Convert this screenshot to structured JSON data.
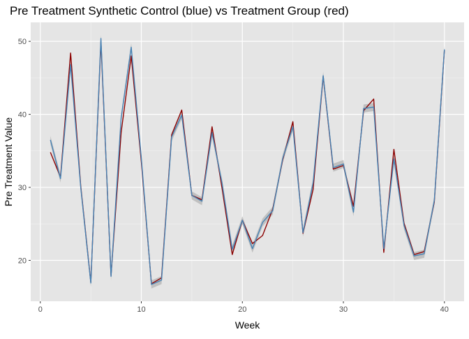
{
  "colors": {
    "panel_background": "#e5e5e5",
    "grid_major": "#ffffff",
    "treatment_line": "#8b0000",
    "synthetic_line": "#4682b4",
    "ribbon": "#b3b3b3"
  },
  "chart_data": {
    "type": "line",
    "title": "Pre Treatment Synthetic Control (blue) vs Treatment Group (red)",
    "xlabel": "Week",
    "ylabel": "Pre Treatment Value",
    "xlim": [
      -0.95,
      41.95
    ],
    "ylim": [
      14.4,
      52.6
    ],
    "x_ticks": [
      0,
      10,
      20,
      30,
      40
    ],
    "y_ticks": [
      20,
      30,
      40,
      50
    ],
    "grid": true,
    "legend": "none",
    "x": [
      1,
      2,
      3,
      4,
      5,
      6,
      7,
      8,
      9,
      10,
      11,
      12,
      13,
      14,
      15,
      16,
      17,
      18,
      19,
      20,
      21,
      22,
      23,
      24,
      25,
      26,
      27,
      28,
      29,
      30,
      31,
      32,
      33,
      34,
      35,
      36,
      37,
      38,
      39,
      40
    ],
    "series": [
      {
        "role": "treatment",
        "color": "#8b0000",
        "values": [
          34.8,
          31.4,
          48.4,
          30.2,
          17.0,
          50.0,
          17.9,
          37.5,
          48.0,
          33.5,
          16.8,
          17.6,
          37.2,
          40.6,
          28.9,
          28.3,
          38.3,
          29.8,
          20.8,
          25.5,
          22.3,
          23.4,
          27.0,
          33.8,
          39.0,
          23.7,
          29.7,
          45.2,
          32.5,
          33.0,
          27.4,
          40.5,
          42.1,
          21.1,
          35.2,
          25.1,
          20.8,
          21.2,
          28.0,
          48.8
        ]
      },
      {
        "role": "synthetic",
        "color": "#4682b4",
        "ribbon": 0.55,
        "values": [
          36.5,
          31.2,
          46.8,
          30.0,
          16.9,
          50.4,
          17.8,
          39.5,
          49.2,
          34.0,
          16.7,
          17.3,
          36.9,
          39.9,
          28.9,
          28.1,
          37.5,
          30.5,
          21.5,
          25.5,
          21.6,
          25.2,
          26.8,
          34.0,
          38.3,
          23.8,
          30.6,
          45.3,
          32.7,
          33.2,
          26.6,
          40.8,
          41.0,
          21.6,
          33.9,
          24.8,
          20.6,
          20.9,
          28.2,
          48.9
        ]
      }
    ]
  }
}
